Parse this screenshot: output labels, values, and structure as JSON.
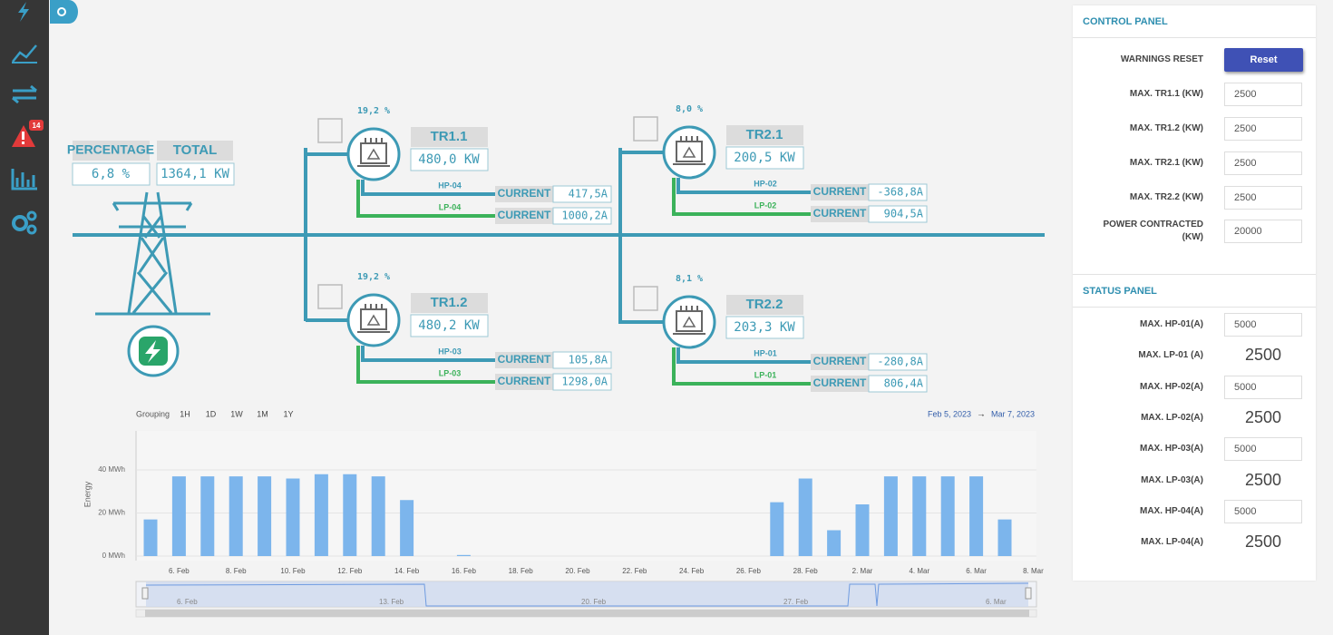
{
  "sidebar": {
    "alert_badge": "14"
  },
  "summary": {
    "percentage_label": "PERCENTAGE",
    "percentage_value": "6,8 %",
    "total_label": "TOTAL",
    "total_value": "1364,1 KW"
  },
  "transformers": [
    {
      "name": "TR1.1",
      "percent": "19,2 %",
      "power": "480,0 KW",
      "hp": {
        "label": "HP-04",
        "current_label": "CURRENT",
        "current": "417,5A"
      },
      "lp": {
        "label": "LP-04",
        "current_label": "CURRENT",
        "current": "1000,2A"
      }
    },
    {
      "name": "TR1.2",
      "percent": "19,2 %",
      "power": "480,2 KW",
      "hp": {
        "label": "HP-03",
        "current_label": "CURRENT",
        "current": "105,8A"
      },
      "lp": {
        "label": "LP-03",
        "current_label": "CURRENT",
        "current": "1298,0A"
      }
    },
    {
      "name": "TR2.1",
      "percent": "8,0 %",
      "power": "200,5 KW",
      "hp": {
        "label": "HP-02",
        "current_label": "CURRENT",
        "current": "-368,8A"
      },
      "lp": {
        "label": "LP-02",
        "current_label": "CURRENT",
        "current": "904,5A"
      }
    },
    {
      "name": "TR2.2",
      "percent": "8,1 %",
      "power": "203,3 KW",
      "hp": {
        "label": "HP-01",
        "current_label": "CURRENT",
        "current": "-280,8A"
      },
      "lp": {
        "label": "LP-01",
        "current_label": "CURRENT",
        "current": "806,4A"
      }
    }
  ],
  "chart_controls": {
    "grouping_label": "Grouping",
    "buttons": [
      "1H",
      "1D",
      "1W",
      "1M",
      "1Y"
    ],
    "range_start": "Feb 5, 2023",
    "range_arrow": "→",
    "range_end": "Mar 7, 2023"
  },
  "chart_data": {
    "type": "bar",
    "y_label": "Energy",
    "categories": [
      null,
      "6. Feb",
      null,
      "8. Feb",
      null,
      "10. Feb",
      null,
      "12. Feb",
      null,
      "14. Feb",
      null,
      "16. Feb",
      null,
      "18. Feb",
      null,
      "20. Feb",
      null,
      "22. Feb",
      null,
      "24. Feb",
      null,
      "26. Feb",
      null,
      "28. Feb",
      null,
      "2. Mar",
      null,
      "4. Mar",
      null,
      "6. Mar",
      null,
      "8. Mar"
    ],
    "values": [
      17,
      37,
      37,
      37,
      37,
      36,
      38,
      38,
      37,
      26,
      0,
      0.5,
      0,
      0,
      0,
      0,
      0,
      0,
      0,
      0,
      0,
      0,
      25,
      36,
      12,
      24,
      37,
      37,
      37,
      37,
      17,
      null
    ],
    "color": "#7cb5ec",
    "ylim": [
      0,
      58
    ],
    "yticks": [
      {
        "value": 0,
        "label": "0 MWh"
      },
      {
        "value": 20,
        "label": "20 MWh"
      },
      {
        "value": 40,
        "label": "40 MWh"
      }
    ],
    "grid": true,
    "navigator_labels": [
      "6. Feb",
      "13. Feb",
      "20. Feb",
      "27. Feb",
      "6. Mar"
    ]
  },
  "control_panel": {
    "title": "CONTROL PANEL",
    "reset_label": "WARNINGS RESET",
    "reset_button": "Reset",
    "rows": [
      {
        "label": "MAX. TR1.1 (KW)",
        "value": "2500"
      },
      {
        "label": "MAX. TR1.2 (KW)",
        "value": "2500"
      },
      {
        "label": "MAX. TR2.1 (KW)",
        "value": "2500"
      },
      {
        "label": "MAX. TR2.2 (KW)",
        "value": "2500"
      },
      {
        "label": "POWER CONTRACTED (KW)",
        "value": "20000"
      }
    ]
  },
  "status_panel": {
    "title": "STATUS PANEL",
    "rows": [
      {
        "label": "MAX. HP-01(A)",
        "value": "5000",
        "input": true
      },
      {
        "label": "MAX. LP-01 (A)",
        "value": "2500",
        "input": false
      },
      {
        "label": "MAX. HP-02(A)",
        "value": "5000",
        "input": true
      },
      {
        "label": "MAX. LP-02(A)",
        "value": "2500",
        "input": false
      },
      {
        "label": "MAX. HP-03(A)",
        "value": "5000",
        "input": true
      },
      {
        "label": "MAX. LP-03(A)",
        "value": "2500",
        "input": false
      },
      {
        "label": "MAX. HP-04(A)",
        "value": "5000",
        "input": true
      },
      {
        "label": "MAX. LP-04(A)",
        "value": "2500",
        "input": false
      }
    ]
  }
}
